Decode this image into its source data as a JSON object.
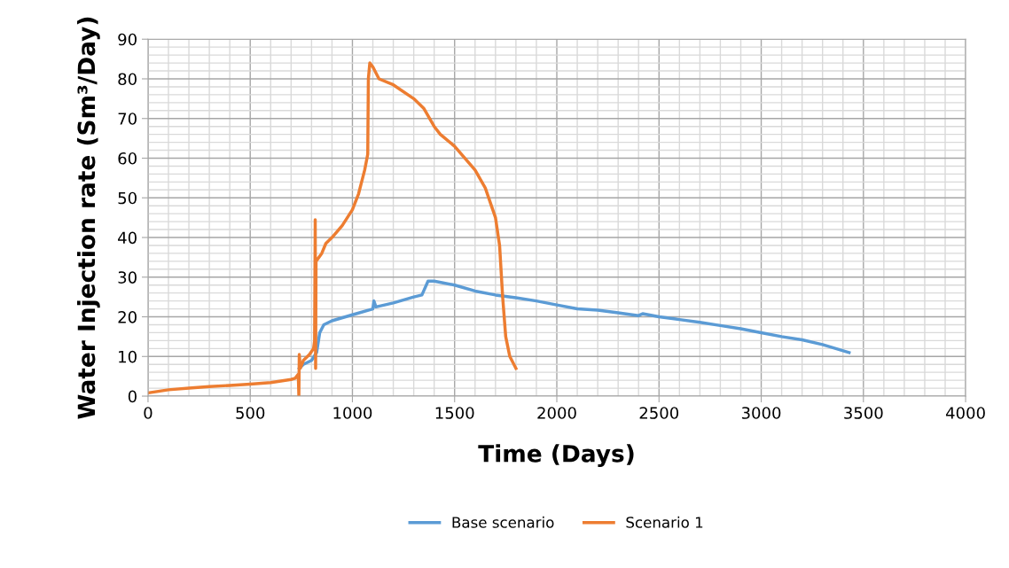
{
  "chart_data": {
    "type": "line",
    "xlabel": "Time (Days)",
    "ylabel": "Water Injection rate (Sm³/Day)",
    "xlim": [
      0,
      4000
    ],
    "xticks": [
      0,
      500,
      1000,
      1500,
      2000,
      2500,
      3000,
      3500,
      4000
    ],
    "ylim": [
      0,
      90
    ],
    "yticks": [
      0,
      10,
      20,
      30,
      40,
      50,
      60,
      70,
      80,
      90
    ],
    "grid": true,
    "legend": "bottom",
    "marker": "none",
    "line_style": "solid",
    "series": [
      {
        "name": "Base scenario",
        "color": "#5b9bd5",
        "x": [
          740,
          760,
          800,
          825,
          840,
          860,
          900,
          1000,
          1100,
          1105,
          1115,
          1200,
          1300,
          1340,
          1370,
          1400,
          1500,
          1600,
          1700,
          1800,
          1900,
          2000,
          2100,
          2200,
          2300,
          2400,
          2420,
          2500,
          2600,
          2700,
          2800,
          2900,
          3000,
          3100,
          3200,
          3300,
          3430
        ],
        "values": [
          7,
          8,
          9,
          11,
          16,
          18,
          19,
          20.5,
          22,
          24,
          22.5,
          23.5,
          25,
          25.5,
          29,
          29,
          28,
          26.5,
          25.5,
          24.8,
          24,
          23,
          22,
          21.7,
          21,
          20.3,
          20.8,
          20,
          19.3,
          18.6,
          17.8,
          17,
          16,
          15,
          14.2,
          13,
          11
        ]
      },
      {
        "name": "Scenario 1",
        "color": "#ed7d31",
        "x": [
          0,
          100,
          200,
          300,
          400,
          500,
          600,
          700,
          720,
          735,
          738,
          740,
          745,
          760,
          790,
          810,
          815,
          818,
          820,
          822,
          850,
          870,
          900,
          950,
          1000,
          1030,
          1060,
          1075,
          1078,
          1085,
          1100,
          1130,
          1200,
          1300,
          1350,
          1400,
          1430,
          1500,
          1600,
          1650,
          1700,
          1720,
          1735,
          1750,
          1770,
          1800
        ],
        "values": [
          0.8,
          1.6,
          2,
          2.4,
          2.7,
          3,
          3.4,
          4.2,
          4.5,
          5.5,
          0,
          10.5,
          7,
          9,
          10.5,
          12,
          14,
          44.5,
          7,
          34,
          36,
          38.5,
          40,
          43,
          47,
          51,
          57,
          61,
          80,
          84,
          83,
          80,
          78.5,
          75,
          72.5,
          68,
          66,
          63,
          57,
          52.5,
          45,
          38,
          25,
          15,
          10,
          7
        ]
      }
    ]
  }
}
